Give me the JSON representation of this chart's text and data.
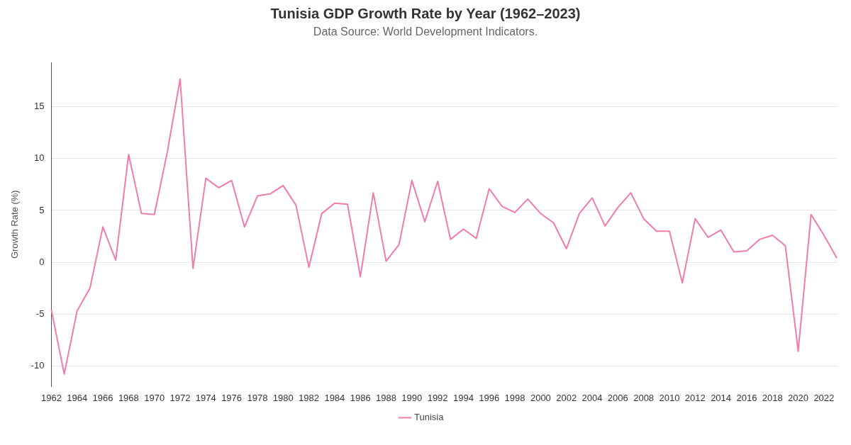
{
  "chart_data": {
    "type": "line",
    "title": "Tunisia GDP Growth Rate by Year (1962–2023)",
    "subtitle": "Data Source: World Development Indicators.",
    "ylabel": "Growth Rate (%)",
    "categories": [
      "1962",
      null,
      "1964",
      null,
      "1966",
      null,
      "1968",
      null,
      "1970",
      null,
      "1972",
      null,
      "1974",
      null,
      "1976",
      null,
      "1978",
      null,
      "1980",
      null,
      "1982",
      null,
      "1984",
      null,
      "1986",
      null,
      "1988",
      null,
      "1990",
      null,
      "1992",
      null,
      "1994",
      null,
      "1996",
      null,
      "1998",
      null,
      "2000",
      null,
      "2002",
      null,
      "2004",
      null,
      "2006",
      null,
      "2008",
      null,
      "2010",
      null,
      "2012",
      null,
      "2014",
      null,
      "2016",
      null,
      "2018",
      null,
      "2020",
      null,
      "2022",
      null
    ],
    "series": [
      {
        "name": "Tunisia",
        "color": "#f17cab",
        "values": [
          -4.6,
          -10.8,
          -4.7,
          -2.5,
          3.4,
          0.2,
          10.4,
          4.7,
          4.6,
          10.6,
          17.7,
          -0.6,
          8.1,
          7.2,
          7.9,
          3.4,
          6.4,
          6.6,
          7.4,
          5.5,
          -0.5,
          4.7,
          5.7,
          5.6,
          -1.4,
          6.7,
          0.1,
          1.7,
          7.9,
          3.9,
          7.8,
          2.2,
          3.2,
          2.3,
          7.1,
          5.4,
          4.8,
          6.1,
          4.7,
          3.8,
          1.3,
          4.7,
          6.2,
          3.5,
          5.3,
          6.7,
          4.2,
          3.0,
          3.0,
          -2.0,
          4.2,
          2.4,
          3.1,
          1.0,
          1.1,
          2.2,
          2.6,
          1.6,
          -8.6,
          4.6,
          2.6,
          0.4
        ]
      }
    ],
    "ylim": [
      -12,
      19.3
    ],
    "yticks": [
      -10,
      -5,
      0,
      5,
      10,
      15
    ],
    "grid": "y",
    "legend": "bottom",
    "marker": "none",
    "line_style": "solid"
  }
}
